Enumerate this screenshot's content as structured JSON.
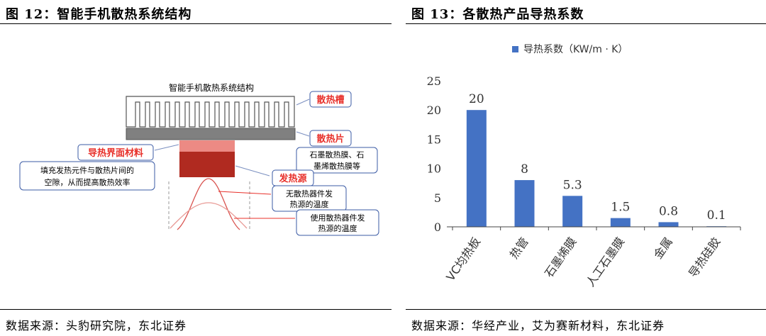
{
  "left": {
    "figure_title": "图 12：智能手机散热系统结构",
    "source": "数据来源：头豹研究院，东北证券",
    "diagram": {
      "header": "智能手机散热系统结构",
      "label_heatsink": "散热槽",
      "label_heatsink_plate": "散热片",
      "label_heatsink_plate_desc_1": "石墨散热膜、石",
      "label_heatsink_plate_desc_2": "墨烯散热膜等",
      "label_tim": "导热界面材料",
      "label_tim_desc_1": "填充发热元件与散热片间的",
      "label_tim_desc_2": "空隙，从而提高散热效率",
      "label_source": "发热源",
      "label_no_sink_1": "无散热器件发",
      "label_no_sink_2": "热源的温度",
      "label_with_sink_1": "使用散热器件发",
      "label_with_sink_2": "热源的温度",
      "colors": {
        "accent_red": "#e8302a",
        "box_border": "#3b5ba5",
        "dark_red": "#b02a20",
        "light_red": "#ec8a84",
        "plate": "#808080"
      }
    }
  },
  "right": {
    "figure_title": "图 13：各散热产品导热系数",
    "source": "数据来源：华经产业，艾为赛新材料，东北证券",
    "chart_data": {
      "type": "bar",
      "categories": [
        "VC均热板",
        "热管",
        "石墨烯膜",
        "人工石墨膜",
        "金属",
        "导热硅胶"
      ],
      "series": [
        {
          "name": "导热系数（KW/m · K）",
          "values": [
            20,
            8,
            5.3,
            1.5,
            0.8,
            0.1
          ]
        }
      ],
      "data_labels": [
        "20",
        "8",
        "5.3",
        "1.5",
        "0.8",
        "0.1"
      ],
      "ylim": [
        0,
        25
      ],
      "yticks": [
        "0",
        "5",
        "10",
        "15",
        "20",
        "25"
      ],
      "legend_position": "top-center",
      "grid": false,
      "bar_color": "#4472c4"
    }
  }
}
